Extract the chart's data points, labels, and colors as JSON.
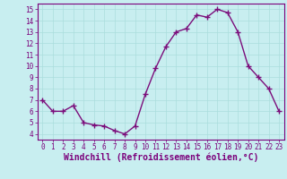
{
  "x": [
    0,
    1,
    2,
    3,
    4,
    5,
    6,
    7,
    8,
    9,
    10,
    11,
    12,
    13,
    14,
    15,
    16,
    17,
    18,
    19,
    20,
    21,
    22,
    23
  ],
  "y": [
    7.0,
    6.0,
    6.0,
    6.5,
    5.0,
    4.8,
    4.7,
    4.3,
    4.0,
    4.7,
    7.5,
    9.8,
    11.7,
    13.0,
    13.3,
    14.5,
    14.3,
    15.0,
    14.7,
    13.0,
    10.0,
    9.0,
    8.0,
    6.0
  ],
  "line_color": "#7b0d7b",
  "marker": "+",
  "markersize": 4,
  "linewidth": 1.0,
  "xlabel": "Windchill (Refroidissement éolien,°C)",
  "xlabel_fontsize": 7.0,
  "xlim": [
    -0.5,
    23.5
  ],
  "ylim": [
    3.5,
    15.5
  ],
  "yticks": [
    4,
    5,
    6,
    7,
    8,
    9,
    10,
    11,
    12,
    13,
    14,
    15
  ],
  "xticks": [
    0,
    1,
    2,
    3,
    4,
    5,
    6,
    7,
    8,
    9,
    10,
    11,
    12,
    13,
    14,
    15,
    16,
    17,
    18,
    19,
    20,
    21,
    22,
    23
  ],
  "bg_color": "#c8eef0",
  "grid_color": "#aadddd",
  "tick_fontsize": 5.5,
  "axis_label_color": "#7b007b",
  "tick_color": "#7b007b",
  "spine_color": "#7b007b"
}
